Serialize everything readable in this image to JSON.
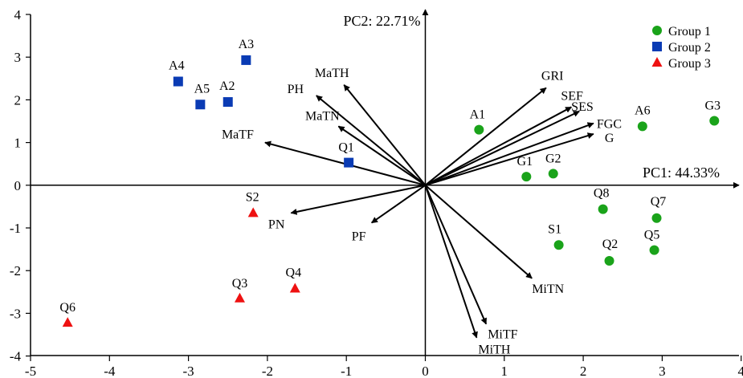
{
  "chart_data": {
    "type": "scatter",
    "title": "",
    "xlabel": "PC1: 44.33%",
    "ylabel": "PC2: 22.71%",
    "xlim": [
      -5,
      4
    ],
    "ylim": [
      -4,
      4
    ],
    "x_ticks": [
      -5,
      -4,
      -3,
      -2,
      -1,
      0,
      1,
      2,
      3,
      4
    ],
    "y_ticks": [
      4,
      3,
      2,
      1,
      0,
      -1,
      -2,
      -3,
      -4
    ],
    "grid": false,
    "legend_position": "top-right",
    "series": [
      {
        "name": "Group 1",
        "marker": "circle",
        "color": "#1aa31a",
        "points": [
          {
            "label": "A1",
            "x": 0.68,
            "y": 1.3
          },
          {
            "label": "A6",
            "x": 2.75,
            "y": 1.38
          },
          {
            "label": "G3",
            "x": 3.66,
            "y": 1.51
          },
          {
            "label": "G1",
            "x": 1.28,
            "y": 0.2
          },
          {
            "label": "G2",
            "x": 1.62,
            "y": 0.27
          },
          {
            "label": "Q8",
            "x": 2.25,
            "y": -0.56
          },
          {
            "label": "Q7",
            "x": 2.93,
            "y": -0.77
          },
          {
            "label": "S1",
            "x": 1.69,
            "y": -1.4
          },
          {
            "label": "Q5",
            "x": 2.9,
            "y": -1.52
          },
          {
            "label": "Q2",
            "x": 2.33,
            "y": -1.77
          }
        ]
      },
      {
        "name": "Group 2",
        "marker": "square",
        "color": "#0a3bb4",
        "points": [
          {
            "label": "A3",
            "x": -2.27,
            "y": 2.93
          },
          {
            "label": "A4",
            "x": -3.13,
            "y": 2.43
          },
          {
            "label": "A5",
            "x": -2.85,
            "y": 1.89
          },
          {
            "label": "A2",
            "x": -2.5,
            "y": 1.95
          },
          {
            "label": "Q1",
            "x": -0.97,
            "y": 0.53
          }
        ]
      },
      {
        "name": "Group 3",
        "marker": "triangle",
        "color": "#ee1111",
        "points": [
          {
            "label": "S2",
            "x": -2.18,
            "y": -0.65
          },
          {
            "label": "Q4",
            "x": -1.65,
            "y": -2.42
          },
          {
            "label": "Q3",
            "x": -2.35,
            "y": -2.65
          },
          {
            "label": "Q6",
            "x": -4.53,
            "y": -3.22
          }
        ]
      }
    ],
    "loadings": [
      {
        "label": "MaTH",
        "x": -1.03,
        "y": 2.35
      },
      {
        "label": "PH",
        "x": -1.38,
        "y": 2.1
      },
      {
        "label": "MaTN",
        "x": -1.1,
        "y": 1.38
      },
      {
        "label": "MaTF",
        "x": -2.03,
        "y": 1.0
      },
      {
        "label": "PN",
        "x": -1.7,
        "y": -0.65
      },
      {
        "label": "PF",
        "x": -0.68,
        "y": -0.88
      },
      {
        "label": "MiTN",
        "x": 1.35,
        "y": -2.18
      },
      {
        "label": "MiTF",
        "x": 0.77,
        "y": -3.25
      },
      {
        "label": "MiTH",
        "x": 0.65,
        "y": -3.57
      },
      {
        "label": "GRI",
        "x": 1.53,
        "y": 2.28
      },
      {
        "label": "SEF",
        "x": 1.85,
        "y": 1.83
      },
      {
        "label": "SES",
        "x": 1.95,
        "y": 1.73
      },
      {
        "label": "FGC",
        "x": 2.13,
        "y": 1.45
      },
      {
        "label": "G",
        "x": 2.13,
        "y": 1.2
      }
    ]
  }
}
